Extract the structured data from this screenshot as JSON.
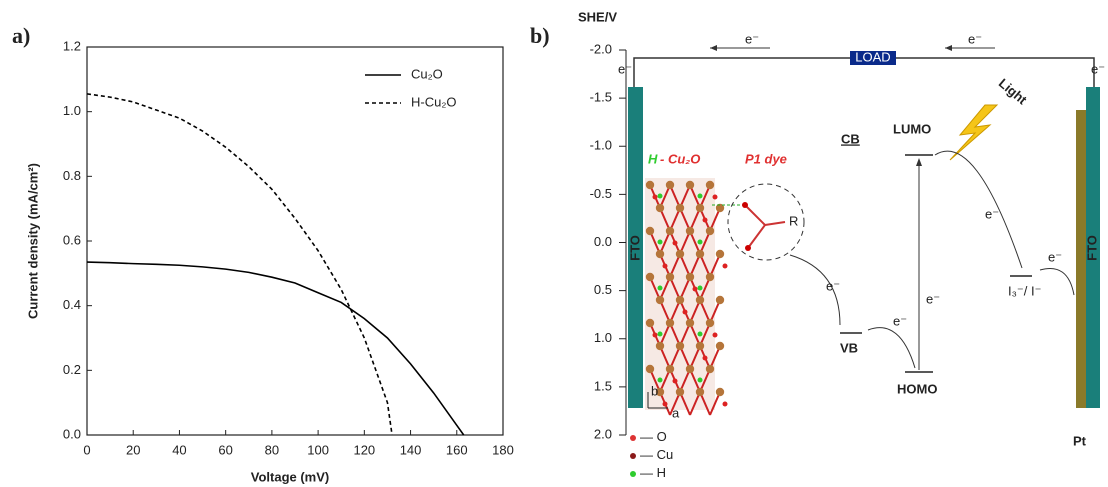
{
  "chart_data": {
    "type": "line",
    "panel_label": "a)",
    "xlabel": "Voltage (mV)",
    "ylabel": "Current density (mA/cm²)",
    "xlim": [
      0,
      180
    ],
    "xticks": [
      0,
      20,
      40,
      60,
      80,
      100,
      120,
      140,
      160,
      180
    ],
    "ylim": [
      0,
      1.2
    ],
    "yticks": [
      {
        "value": 0,
        "label": "0.0"
      },
      0.2,
      0.4,
      0.6,
      0.8,
      {
        "value": 1,
        "label": "1.0"
      },
      1.2
    ],
    "legend": "upper right",
    "series": [
      {
        "name": "Cu₂O",
        "color": "#000000",
        "style": "solid",
        "x": [
          0,
          10,
          20,
          30,
          40,
          50,
          60,
          70,
          80,
          90,
          100,
          110,
          120,
          130,
          140,
          150,
          160,
          163
        ],
        "values": [
          0.535,
          0.533,
          0.53,
          0.528,
          0.525,
          0.52,
          0.513,
          0.503,
          0.488,
          0.47,
          0.44,
          0.41,
          0.36,
          0.3,
          0.22,
          0.13,
          0.03,
          0
        ]
      },
      {
        "name": "H-Cu₂O",
        "color": "#000000",
        "style": "dashed",
        "x": [
          0,
          10,
          20,
          30,
          40,
          50,
          60,
          70,
          80,
          90,
          100,
          110,
          120,
          130,
          132
        ],
        "values": [
          1.055,
          1.045,
          1.03,
          1.005,
          0.98,
          0.94,
          0.89,
          0.83,
          0.76,
          0.67,
          0.57,
          0.45,
          0.3,
          0.1,
          0
        ]
      }
    ]
  },
  "diagram": {
    "panel_label": "b)",
    "axis": {
      "label": "SHE/V",
      "ticks": [
        {
          "value": -2,
          "label": "-2.0"
        },
        -1.5,
        {
          "value": -1,
          "label": "-1.0"
        },
        -0.5,
        {
          "value": 0,
          "label": "0.0"
        },
        0.5,
        {
          "value": 1,
          "label": "1.0"
        },
        1.5,
        {
          "value": 2,
          "label": "2.0"
        }
      ]
    },
    "load": "LOAD",
    "fto_left": "FTO",
    "fto_right": "FTO",
    "pt": "Pt",
    "semiconductor": {
      "prefix": "H",
      "rest": " - Cu₂O"
    },
    "dye": "P1 dye",
    "r_group": "R",
    "cb": "CB",
    "vb": "VB",
    "lumo": "LUMO",
    "homo": "HOMO",
    "light": "Light",
    "redox": "I₃⁻/ I⁻",
    "electrons": [
      "e⁻",
      "e⁻",
      "e⁻",
      "e⁻",
      "e⁻",
      "e⁻",
      "e⁻",
      "e⁻",
      "e⁻"
    ],
    "lattice_axes": [
      "b",
      "a"
    ],
    "atoms": [
      "O",
      "Cu",
      "H"
    ]
  }
}
